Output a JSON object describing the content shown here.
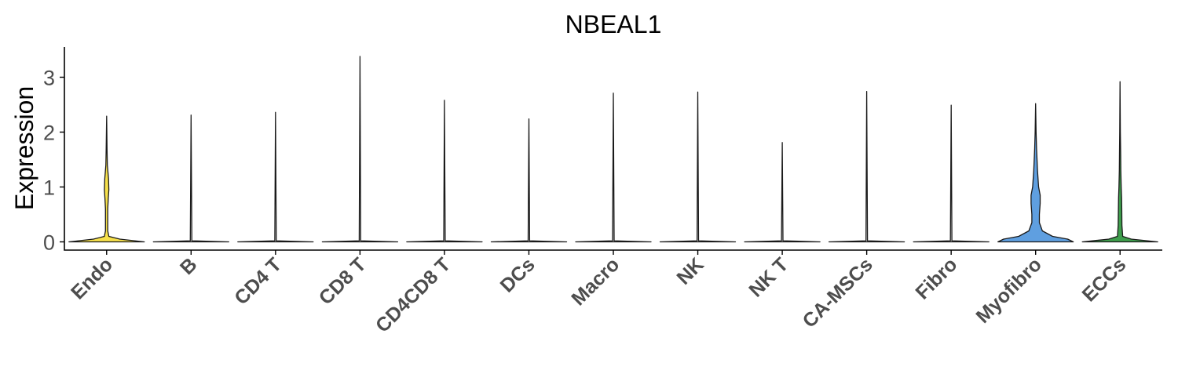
{
  "chart_data": {
    "type": "violin",
    "title": "NBEAL1",
    "ylabel": "Expression",
    "xlabel": "",
    "ylim": [
      -0.15,
      3.55
    ],
    "yticks": [
      0,
      1,
      2,
      3
    ],
    "grid": false,
    "legend": "none",
    "categories": [
      "Endo",
      "B",
      "CD4 T",
      "CD8 T",
      "CD4CD8 T",
      "DCs",
      "Macro",
      "NK",
      "NK T",
      "CA-MSCs",
      "Fibro",
      "Myofibro",
      "ECCs"
    ],
    "max_values": [
      2.29,
      2.31,
      2.36,
      3.38,
      2.58,
      2.24,
      2.71,
      2.73,
      1.81,
      2.74,
      2.49,
      2.52,
      2.92
    ],
    "colors": [
      "#f6e04b",
      "#e3e3e3",
      "#e3e3e3",
      "#e3e3e3",
      "#e3e3e3",
      "#e3e3e3",
      "#e3e3e3",
      "#e3e3e3",
      "#e3e3e3",
      "#e3e3e3",
      "#e3e3e3",
      "#5f9fe0",
      "#3e9e4c"
    ],
    "density": [
      [
        [
          0,
          1
        ],
        [
          0.05,
          0.35
        ],
        [
          0.1,
          0.06
        ],
        [
          0.2,
          0.03
        ],
        [
          0.4,
          0.03
        ],
        [
          0.6,
          0.03
        ],
        [
          0.8,
          0.045
        ],
        [
          0.95,
          0.06
        ],
        [
          1.15,
          0.05
        ],
        [
          1.4,
          0.02
        ],
        [
          1.7,
          0.012
        ],
        [
          2.29,
          0
        ]
      ],
      [
        [
          0,
          1
        ],
        [
          0.02,
          0.02
        ],
        [
          2.31,
          0
        ]
      ],
      [
        [
          0,
          1
        ],
        [
          0.02,
          0.02
        ],
        [
          2.36,
          0
        ]
      ],
      [
        [
          0,
          1
        ],
        [
          0.02,
          0.02
        ],
        [
          3.38,
          0
        ]
      ],
      [
        [
          0,
          1
        ],
        [
          0.02,
          0.02
        ],
        [
          2.58,
          0
        ]
      ],
      [
        [
          0,
          1
        ],
        [
          0.02,
          0.02
        ],
        [
          2.24,
          0
        ]
      ],
      [
        [
          0,
          1
        ],
        [
          0.02,
          0.02
        ],
        [
          2.71,
          0
        ]
      ],
      [
        [
          0,
          1
        ],
        [
          0.02,
          0.02
        ],
        [
          2.73,
          0
        ]
      ],
      [
        [
          0,
          1
        ],
        [
          0.02,
          0.02
        ],
        [
          1.81,
          0
        ]
      ],
      [
        [
          0,
          1
        ],
        [
          0.02,
          0.02
        ],
        [
          2.74,
          0
        ]
      ],
      [
        [
          0,
          1
        ],
        [
          0.02,
          0.02
        ],
        [
          2.49,
          0
        ]
      ],
      [
        [
          0,
          1
        ],
        [
          0.05,
          0.85
        ],
        [
          0.1,
          0.45
        ],
        [
          0.2,
          0.18
        ],
        [
          0.35,
          0.1
        ],
        [
          0.5,
          0.1
        ],
        [
          0.7,
          0.12
        ],
        [
          0.85,
          0.12
        ],
        [
          1.0,
          0.08
        ],
        [
          1.3,
          0.05
        ],
        [
          1.7,
          0.025
        ],
        [
          2.0,
          0.012
        ],
        [
          2.52,
          0
        ]
      ],
      [
        [
          0,
          1
        ],
        [
          0.05,
          0.3
        ],
        [
          0.1,
          0.07
        ],
        [
          0.3,
          0.05
        ],
        [
          0.6,
          0.045
        ],
        [
          0.8,
          0.04
        ],
        [
          1.0,
          0.03
        ],
        [
          1.3,
          0.02
        ],
        [
          1.6,
          0.015
        ],
        [
          2.0,
          0.008
        ],
        [
          2.92,
          0
        ]
      ]
    ]
  }
}
